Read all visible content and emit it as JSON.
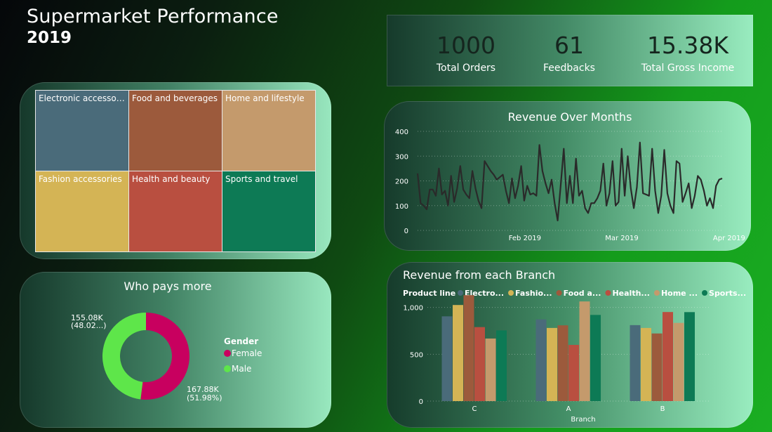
{
  "header": {
    "title": "Supermarket Performance",
    "year": "2019"
  },
  "kpis": [
    {
      "value": "1000",
      "label": "Total Orders"
    },
    {
      "value": "61",
      "label": "Feedbacks"
    },
    {
      "value": "15.38K",
      "label": "Total Gross Income"
    }
  ],
  "treemap": {
    "type": "treemap",
    "cells": [
      {
        "label": "Electronic accessori...",
        "color": "#4a6b7a"
      },
      {
        "label": "Food and beverages",
        "color": "#9c5a3c"
      },
      {
        "label": "Home and lifestyle",
        "color": "#c49a6c"
      },
      {
        "label": "Fashion accessories",
        "color": "#d4b455"
      },
      {
        "label": "Health and beauty",
        "color": "#b94f40"
      },
      {
        "label": "Sports and travel",
        "color": "#0d7a55"
      }
    ]
  },
  "donut": {
    "type": "pie",
    "title": "Who pays more",
    "legend_title": "Gender",
    "slices": [
      {
        "name": "Female",
        "value": 167.88,
        "percent": 51.98,
        "label_value": "167.88K",
        "label_pct": "(51.98%)",
        "color": "#c8005f"
      },
      {
        "name": "Male",
        "value": 155.08,
        "percent": 48.02,
        "label_value": "155.08K",
        "label_pct": "(48.02...)",
        "color": "#5ee64a"
      }
    ]
  },
  "chart_data": [
    {
      "type": "line",
      "title": "Revenue Over Months",
      "ylim": [
        0,
        400
      ],
      "yticks": [
        "0",
        "100",
        "200",
        "300",
        "400"
      ],
      "xticks": [
        "Feb 2019",
        "Mar 2019",
        "Apr 2019"
      ],
      "x_start": "2019-01-01",
      "x_end": "2019-03-30",
      "values": [
        230,
        110,
        100,
        85,
        165,
        165,
        140,
        250,
        145,
        160,
        100,
        220,
        115,
        170,
        260,
        165,
        145,
        130,
        240,
        170,
        120,
        90,
        280,
        260,
        240,
        225,
        205,
        215,
        225,
        160,
        110,
        210,
        130,
        180,
        260,
        120,
        180,
        145,
        150,
        140,
        345,
        240,
        190,
        150,
        205,
        110,
        40,
        185,
        330,
        110,
        220,
        110,
        290,
        140,
        160,
        90,
        70,
        110,
        110,
        130,
        160,
        270,
        100,
        150,
        280,
        100,
        115,
        330,
        140,
        300,
        170,
        90,
        175,
        355,
        150,
        145,
        140,
        330,
        160,
        70,
        140,
        325,
        150,
        100,
        70,
        280,
        270,
        115,
        150,
        190,
        90,
        140,
        220,
        205,
        160,
        100,
        130,
        90,
        180,
        205,
        210
      ],
      "line_color": "#2a2a2a"
    },
    {
      "type": "bar",
      "title": "Revenue from each Branch",
      "xlabel": "Branch",
      "legend_title": "Product line",
      "categories": [
        "C",
        "A",
        "B"
      ],
      "ylim": [
        0,
        1200
      ],
      "yticks": [
        "0",
        "500",
        "1,000"
      ],
      "series": [
        {
          "name": "Electro...",
          "color": "#4a6b7a",
          "values": [
            905,
            872,
            811
          ]
        },
        {
          "name": "Fashio...",
          "color": "#d4b455",
          "values": [
            1026,
            781,
            781
          ]
        },
        {
          "name": "Food a...",
          "color": "#9c5a3c",
          "values": [
            1131,
            809,
            722
          ]
        },
        {
          "name": "Health...",
          "color": "#b94f40",
          "values": [
            790,
            600,
            951
          ]
        },
        {
          "name": "Home ...",
          "color": "#c49a6c",
          "values": [
            668,
            1064,
            835
          ]
        },
        {
          "name": "Sports...",
          "color": "#0d7a55",
          "values": [
            755,
            920,
            950
          ]
        }
      ]
    }
  ]
}
